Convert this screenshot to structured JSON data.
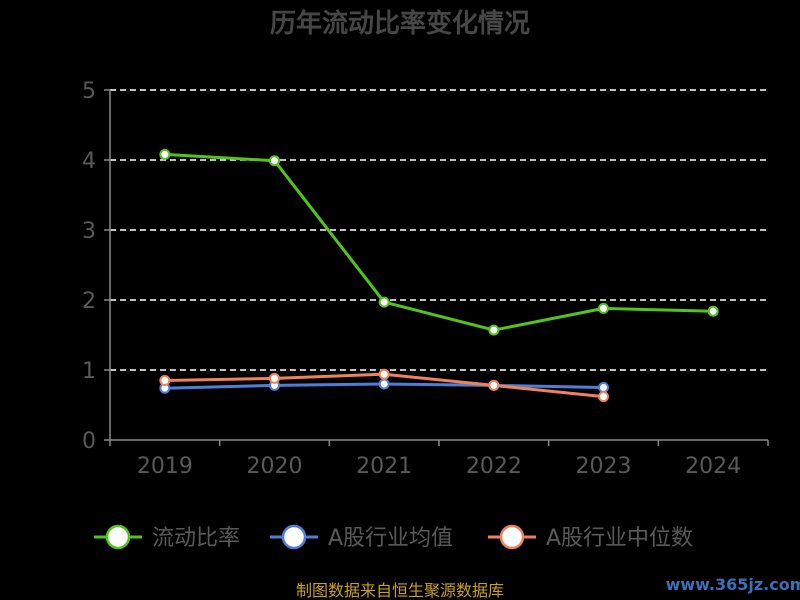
{
  "chart_data": {
    "type": "line",
    "title": "历年流动比率变化情况",
    "categories": [
      "2019",
      "2020",
      "2021",
      "2022",
      "2023",
      "2024"
    ],
    "ylim": [
      0,
      5
    ],
    "yticks": [
      0,
      1,
      2,
      3,
      4,
      5
    ],
    "grid": true,
    "legend_position": "bottom",
    "series": [
      {
        "name": "流动比率",
        "color": "#52c41a",
        "values": [
          4.08,
          3.99,
          1.97,
          1.57,
          1.88,
          1.84
        ]
      },
      {
        "name": "A股行业均值",
        "color": "#4e7fd8",
        "values": [
          0.74,
          0.78,
          0.8,
          0.78,
          0.75,
          null
        ]
      },
      {
        "name": "A股行业中位数",
        "color": "#f0825a",
        "values": [
          0.85,
          0.88,
          0.94,
          0.78,
          0.62,
          null
        ]
      }
    ]
  },
  "footer": {
    "source": "制图数据来自恒生聚源数据库",
    "watermark": "www.365jz.com"
  },
  "colors": {
    "background": "#000000",
    "axis": "#888888",
    "grid": "#ffffff"
  }
}
